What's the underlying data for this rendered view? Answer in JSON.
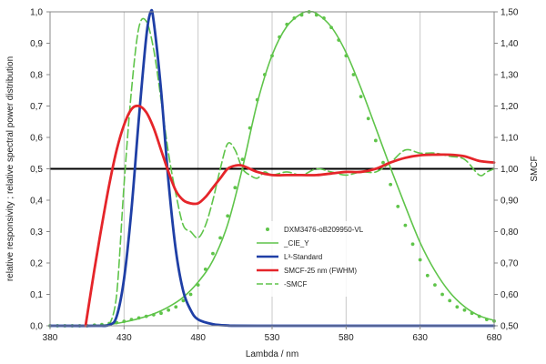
{
  "chart_data": {
    "type": "line",
    "xlabel": "Lambda / nm",
    "ylabel": "relative responsivity ; relative spectral power distribution",
    "y2label": "SMCF",
    "xlim": [
      380,
      680
    ],
    "ylim": [
      0,
      1
    ],
    "y2lim": [
      0.5,
      1.5
    ],
    "x_ticks": [
      "380",
      "430",
      "480",
      "530",
      "580",
      "630",
      "680"
    ],
    "y_ticks": [
      "0,0",
      "0,1",
      "0,2",
      "0,3",
      "0,4",
      "0,5",
      "0,6",
      "0,7",
      "0,8",
      "0,9",
      "1,0"
    ],
    "y2_ticks": [
      "0,50",
      "0,60",
      "0,70",
      "0,80",
      "0,90",
      "1,00",
      "1,10",
      "1,20",
      "1,30",
      "1,40",
      "1,50"
    ],
    "grid": "vertical",
    "reference_line": {
      "axis": "y2",
      "value": 1.0,
      "color": "#000000"
    },
    "legend_position": "center-right",
    "series": [
      {
        "name": "DXM3476-oB209950-VL",
        "axis": "y",
        "style": "dots",
        "color": "#5fc44a",
        "x": [
          380,
          385,
          390,
          395,
          400,
          405,
          410,
          415,
          420,
          425,
          430,
          435,
          440,
          445,
          450,
          455,
          460,
          465,
          470,
          475,
          480,
          485,
          490,
          495,
          500,
          505,
          510,
          515,
          520,
          525,
          530,
          535,
          540,
          545,
          550,
          555,
          560,
          565,
          570,
          575,
          580,
          585,
          590,
          595,
          600,
          605,
          610,
          615,
          620,
          625,
          630,
          635,
          640,
          645,
          650,
          655,
          660,
          665,
          670,
          675,
          680
        ],
        "y": [
          0,
          0,
          0,
          0,
          0,
          0,
          0.002,
          0.004,
          0.007,
          0.01,
          0.014,
          0.02,
          0.025,
          0.03,
          0.035,
          0.04,
          0.05,
          0.06,
          0.08,
          0.1,
          0.13,
          0.18,
          0.23,
          0.28,
          0.35,
          0.44,
          0.53,
          0.63,
          0.72,
          0.8,
          0.86,
          0.92,
          0.96,
          0.98,
          0.99,
          1.0,
          0.99,
          0.98,
          0.95,
          0.91,
          0.86,
          0.8,
          0.73,
          0.66,
          0.59,
          0.52,
          0.45,
          0.38,
          0.32,
          0.26,
          0.21,
          0.16,
          0.13,
          0.1,
          0.08,
          0.06,
          0.05,
          0.04,
          0.03,
          0.02,
          0.015
        ]
      },
      {
        "name": "_CIE_Y",
        "axis": "y",
        "style": "line",
        "color": "#5fc44a",
        "x": [
          380,
          390,
          400,
          410,
          420,
          430,
          440,
          450,
          460,
          470,
          480,
          490,
          500,
          510,
          520,
          530,
          540,
          550,
          555,
          560,
          570,
          580,
          590,
          600,
          610,
          620,
          630,
          640,
          650,
          660,
          670,
          680
        ],
        "y": [
          0,
          0,
          0,
          0.001,
          0.004,
          0.012,
          0.023,
          0.038,
          0.06,
          0.091,
          0.139,
          0.208,
          0.323,
          0.503,
          0.71,
          0.862,
          0.954,
          0.995,
          1.0,
          0.995,
          0.952,
          0.87,
          0.757,
          0.631,
          0.503,
          0.381,
          0.265,
          0.175,
          0.107,
          0.061,
          0.032,
          0.017
        ]
      },
      {
        "name": "L³-Standard",
        "axis": "y",
        "style": "line",
        "color": "#1f3fa6",
        "x": [
          380,
          410,
          420,
          425,
          430,
          435,
          440,
          445,
          448,
          450,
          455,
          460,
          465,
          470,
          475,
          480,
          490,
          500,
          520,
          680
        ],
        "y": [
          0,
          0,
          0.003,
          0.03,
          0.15,
          0.37,
          0.66,
          0.92,
          1.0,
          0.97,
          0.75,
          0.46,
          0.24,
          0.11,
          0.05,
          0.02,
          0.005,
          0.001,
          0,
          0
        ]
      },
      {
        "name": "SMCF-25 nm (FWHM)",
        "axis": "y2",
        "style": "line",
        "color": "#e5252a",
        "x": [
          404,
          410,
          415,
          420,
          425,
          430,
          435,
          440,
          445,
          450,
          455,
          460,
          465,
          470,
          475,
          480,
          485,
          490,
          495,
          500,
          505,
          510,
          520,
          530,
          540,
          550,
          560,
          570,
          580,
          590,
          600,
          610,
          620,
          630,
          640,
          650,
          660,
          670,
          680
        ],
        "y": [
          0.5,
          0.68,
          0.82,
          0.95,
          1.06,
          1.14,
          1.19,
          1.2,
          1.18,
          1.13,
          1.06,
          0.99,
          0.93,
          0.9,
          0.89,
          0.89,
          0.91,
          0.94,
          0.97,
          1.0,
          1.01,
          1.01,
          0.99,
          0.98,
          0.98,
          0.98,
          0.98,
          0.985,
          0.99,
          0.99,
          1.0,
          1.02,
          1.035,
          1.043,
          1.045,
          1.045,
          1.04,
          1.025,
          1.02
        ]
      },
      {
        "name": "-SMCF",
        "axis": "y2",
        "style": "dashed",
        "color": "#5fc44a",
        "x": [
          420,
          425,
          430,
          435,
          440,
          445,
          450,
          455,
          460,
          465,
          470,
          475,
          480,
          485,
          490,
          495,
          500,
          505,
          510,
          515,
          520,
          525,
          530,
          540,
          550,
          560,
          570,
          580,
          590,
          600,
          610,
          620,
          630,
          640,
          650,
          660,
          670,
          675,
          680
        ],
        "y": [
          0.5,
          0.6,
          0.95,
          1.25,
          1.45,
          1.47,
          1.38,
          1.22,
          1.05,
          0.92,
          0.82,
          0.8,
          0.78,
          0.82,
          0.9,
          1.0,
          1.08,
          1.06,
          1.0,
          0.98,
          0.97,
          0.99,
          0.98,
          0.99,
          0.98,
          1.0,
          0.99,
          0.98,
          0.99,
          0.99,
          1.02,
          1.06,
          1.05,
          1.05,
          1.04,
          1.03,
          0.98,
          0.99,
          1.0
        ]
      }
    ]
  }
}
